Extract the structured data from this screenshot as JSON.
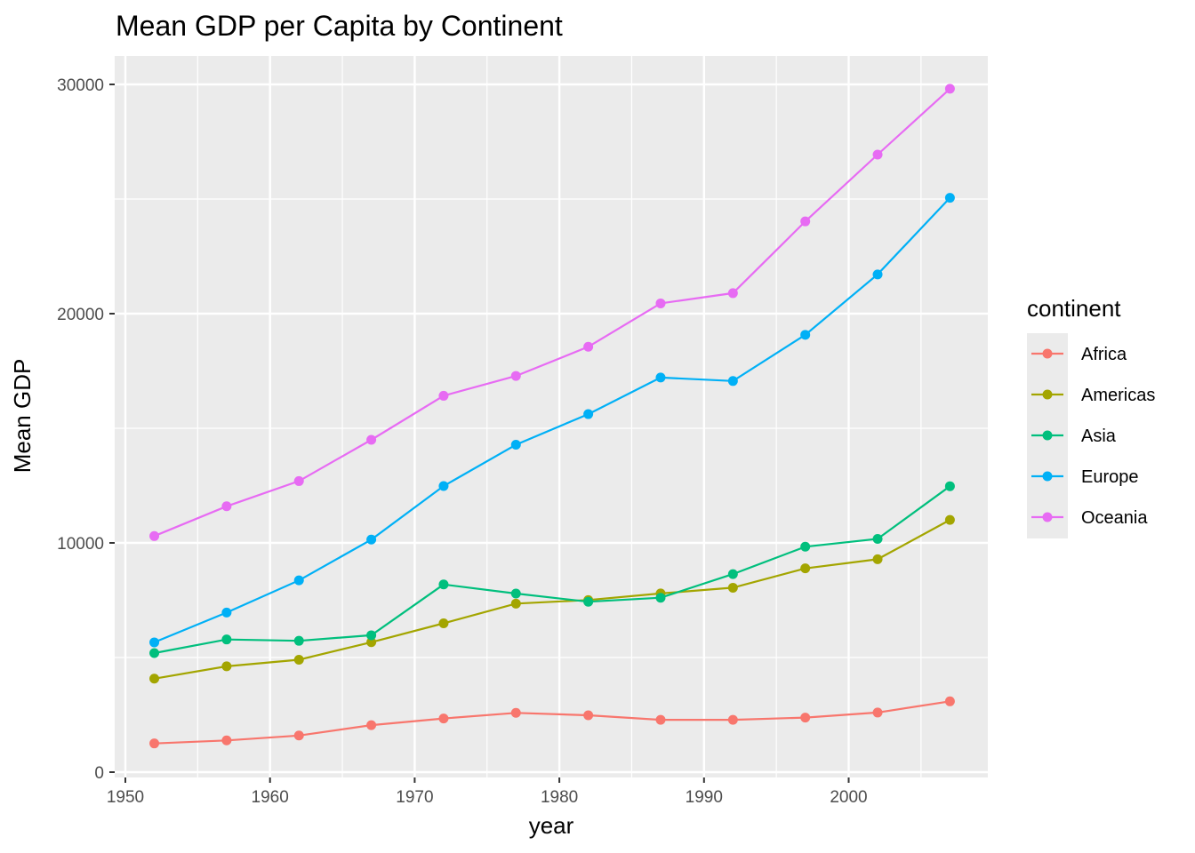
{
  "chart_data": {
    "type": "line",
    "title": "Mean GDP per Capita by Continent",
    "xlabel": "year",
    "ylabel": "Mean GDP",
    "xlim": [
      1949.25,
      2009.75
    ],
    "ylim": [
      -1200,
      31250
    ],
    "x_ticks": [
      1950,
      1960,
      1970,
      1980,
      1990,
      2000
    ],
    "x_tick_labels": [
      "1950",
      "1960",
      "1970",
      "1980",
      "1990",
      "2000"
    ],
    "y_ticks": [
      0,
      10000,
      20000,
      30000
    ],
    "y_tick_labels": [
      "0",
      "10000",
      "20000",
      "30000"
    ],
    "grid": true,
    "legend": {
      "title": "continent",
      "position": "right"
    },
    "x": [
      1952,
      1957,
      1962,
      1967,
      1972,
      1977,
      1982,
      1987,
      1992,
      1997,
      2002,
      2007
    ],
    "series": [
      {
        "name": "Africa",
        "color": "#F8766D",
        "values": [
          1252.6,
          1385.2,
          1598.1,
          2050.4,
          2339.6,
          2585.9,
          2481.6,
          2282.7,
          2281.8,
          2378.8,
          2599.4,
          3089.0
        ]
      },
      {
        "name": "Americas",
        "color": "#A3A500",
        "values": [
          4079.1,
          4616.0,
          4901.5,
          5668.3,
          6491.3,
          7352.0,
          7506.7,
          7793.4,
          8044.9,
          8889.3,
          9287.7,
          11003.0
        ]
      },
      {
        "name": "Asia",
        "color": "#00BF7D",
        "values": [
          5195.5,
          5787.7,
          5729.4,
          5971.2,
          8187.5,
          7791.3,
          7434.1,
          7608.2,
          8639.7,
          9834.1,
          10174.1,
          12473.0
        ]
      },
      {
        "name": "Europe",
        "color": "#00B0F6",
        "values": [
          5661.1,
          6963.0,
          8365.5,
          10143.8,
          12479.6,
          14283.9,
          15617.9,
          17214.3,
          17061.6,
          19076.8,
          21711.7,
          25054.5
        ]
      },
      {
        "name": "Oceania",
        "color": "#E76BF3",
        "values": [
          10298.1,
          11598.5,
          12696.5,
          14495.0,
          16417.3,
          17283.9,
          18554.7,
          20448.0,
          20894.0,
          24024.2,
          26938.8,
          29810.2
        ]
      }
    ]
  }
}
